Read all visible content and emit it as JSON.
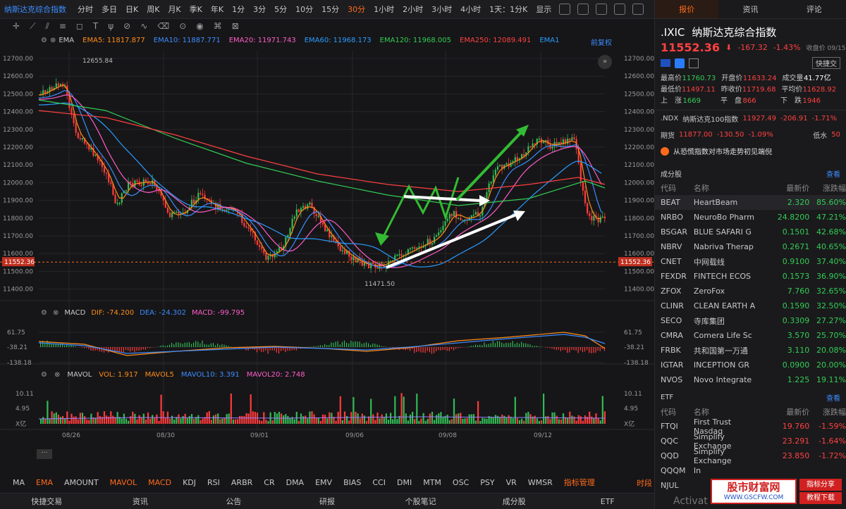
{
  "topbar": {
    "symbol": "纳斯达克综合指数",
    "timeframes": [
      "分时",
      "多日",
      "日K",
      "周K",
      "月K",
      "季K",
      "年K",
      "1分",
      "3分",
      "5分",
      "10分",
      "15分",
      "30分",
      "1小时",
      "2小时",
      "3小时",
      "4小时"
    ],
    "active": "30分",
    "period_select": "1天：1分K",
    "display": "显示"
  },
  "indicators": {
    "ema": {
      "label": "EMA",
      "items": [
        {
          "k": "EMA5:",
          "v": "11817.877",
          "c": "#ff8c1a"
        },
        {
          "k": "EMA10:",
          "v": "11887.771",
          "c": "#3c8cff"
        },
        {
          "k": "EMA20:",
          "v": "11971.743",
          "c": "#ff5cc8"
        },
        {
          "k": "EMA60:",
          "v": "11968.173",
          "c": "#2a9cff"
        },
        {
          "k": "EMA120:",
          "v": "11968.005",
          "c": "#33cc55"
        },
        {
          "k": "EMA250:",
          "v": "12089.491",
          "c": "#ff4040"
        },
        {
          "k": "EMA1",
          "v": "",
          "c": "#2a9cff"
        }
      ],
      "adjust": "前复权"
    },
    "macd": {
      "label": "MACD",
      "dif": "DIF: -74.200",
      "dea": "DEA: -24.302",
      "macd": "MACD: -99.795"
    },
    "mavol": {
      "label": "MAVOL",
      "vol": "VOL: 1.917",
      "ma5": "MAVOL5",
      "ma10": "MAVOL10: 3.391",
      "ma20": "MAVOL20: 2.748"
    }
  },
  "price_axis": [
    "12700.00",
    "12600.00",
    "12500.00",
    "12400.00",
    "12300.00",
    "12200.00",
    "12100.00",
    "12000.00",
    "11900.00",
    "11800.00",
    "11700.00",
    "11600.00",
    "11500.00",
    "11400.00"
  ],
  "current_price": "11552.36",
  "high_label": "12655.84",
  "low_label": "11471.50",
  "macd_axis": [
    "61.75",
    "-38.21",
    "-138.18"
  ],
  "vol_axis": [
    "10.11",
    "4.95",
    "X亿"
  ],
  "date_labels": [
    "08/26",
    "08/30",
    "09/01",
    "09/06",
    "09/08",
    "09/12"
  ],
  "ind_tabs": [
    "MA",
    "EMA",
    "AMOUNT",
    "MAVOL",
    "MACD",
    "KDJ",
    "RSI",
    "ARBR",
    "CR",
    "DMA",
    "EMV",
    "BIAS",
    "CCI",
    "DMI",
    "MTM",
    "OSC",
    "PSY",
    "VR",
    "WMSR",
    "指标管理"
  ],
  "ind_tabs_on": [
    "EMA",
    "MAVOL",
    "MACD",
    "指标管理"
  ],
  "timeshare": "时段",
  "footer": [
    "快捷交易",
    "资讯",
    "公告",
    "研报",
    "个股笔记",
    "成分股",
    "ETF"
  ],
  "right": {
    "tabs": [
      "报价",
      "资讯",
      "评论"
    ],
    "code": ".IXIC",
    "name": "纳斯达克综合指数",
    "price": "11552.36",
    "change": "-167.32",
    "pct": "-1.43%",
    "close_time": "收盘价 09/15 16:00",
    "quick": "快捷交",
    "stats": [
      [
        "最高价",
        "11760.73",
        "开盘价",
        "11633.24",
        "成交量",
        "41.77亿"
      ],
      [
        "最低价",
        "11497.11",
        "昨收价",
        "11719.68",
        "平均价",
        "11628.92"
      ],
      [
        "上　涨",
        "1669",
        "平　盘",
        "866",
        "下　跌",
        "1946"
      ]
    ],
    "ndx": {
      "code": ".NDX",
      "name": "纳斯达克100指数",
      "price": "11927.49",
      "chg": "-206.91",
      "pct": "-1.71%"
    },
    "fut": {
      "label": "期货",
      "price": "11877.00",
      "chg": "-130.50",
      "pct": "-1.09%",
      "tail": "低水",
      "tv": "50"
    },
    "news": "从恐慌指数对市场走势初见端倪",
    "cons_title": "成分股",
    "more": "查看",
    "cols": [
      "代码",
      "名称",
      "最新价",
      "涨跌幅"
    ],
    "cons": [
      [
        "BEAT",
        "HeartBeam",
        "2.320",
        "85.60%"
      ],
      [
        "NRBO",
        "NeuroBo Pharm",
        "24.8200",
        "47.21%"
      ],
      [
        "BSGAR",
        "BLUE SAFARI G",
        "0.1501",
        "42.68%"
      ],
      [
        "NBRV",
        "Nabriva Therap",
        "0.2671",
        "40.65%"
      ],
      [
        "CNET",
        "中网载线",
        "0.9100",
        "37.40%"
      ],
      [
        "FEXDR",
        "FINTECH ECOS",
        "0.1573",
        "36.90%"
      ],
      [
        "ZFOX",
        "ZeroFox",
        "7.760",
        "32.65%"
      ],
      [
        "CLINR",
        "CLEAN EARTH A",
        "0.1590",
        "32.50%"
      ],
      [
        "SECO",
        "寺库集团",
        "0.3309",
        "27.27%"
      ],
      [
        "CMRA",
        "Comera Life Sc",
        "3.570",
        "25.70%"
      ],
      [
        "FRBK",
        "共和国第一万通",
        "3.110",
        "20.08%"
      ],
      [
        "IGTAR",
        "INCEPTION GR",
        "0.0900",
        "20.00%"
      ],
      [
        "NVOS",
        "Novo Integrate",
        "1.225",
        "19.11%"
      ]
    ],
    "etf_title": "ETF",
    "etf_cols": [
      "代码",
      "名称",
      "最新价",
      "涨跌幅"
    ],
    "etf": [
      [
        "FTQI",
        "First Trust Nasdaq",
        "19.760",
        "-1.59%"
      ],
      [
        "QQC",
        "Simplify Exchange",
        "23.291",
        "-1.64%"
      ],
      [
        "QQD",
        "Simplify Exchange",
        "23.850",
        "-1.72%"
      ],
      [
        "QQQM",
        "In",
        "",
        ""
      ],
      [
        "NJUL",
        "",
        "",
        ""
      ]
    ]
  },
  "watermark": {
    "name": "股市财富网",
    "site": "WWW.GSCFW.COM",
    "b1": "指标分享",
    "b2": "教程下载"
  },
  "activate": "Activat"
}
